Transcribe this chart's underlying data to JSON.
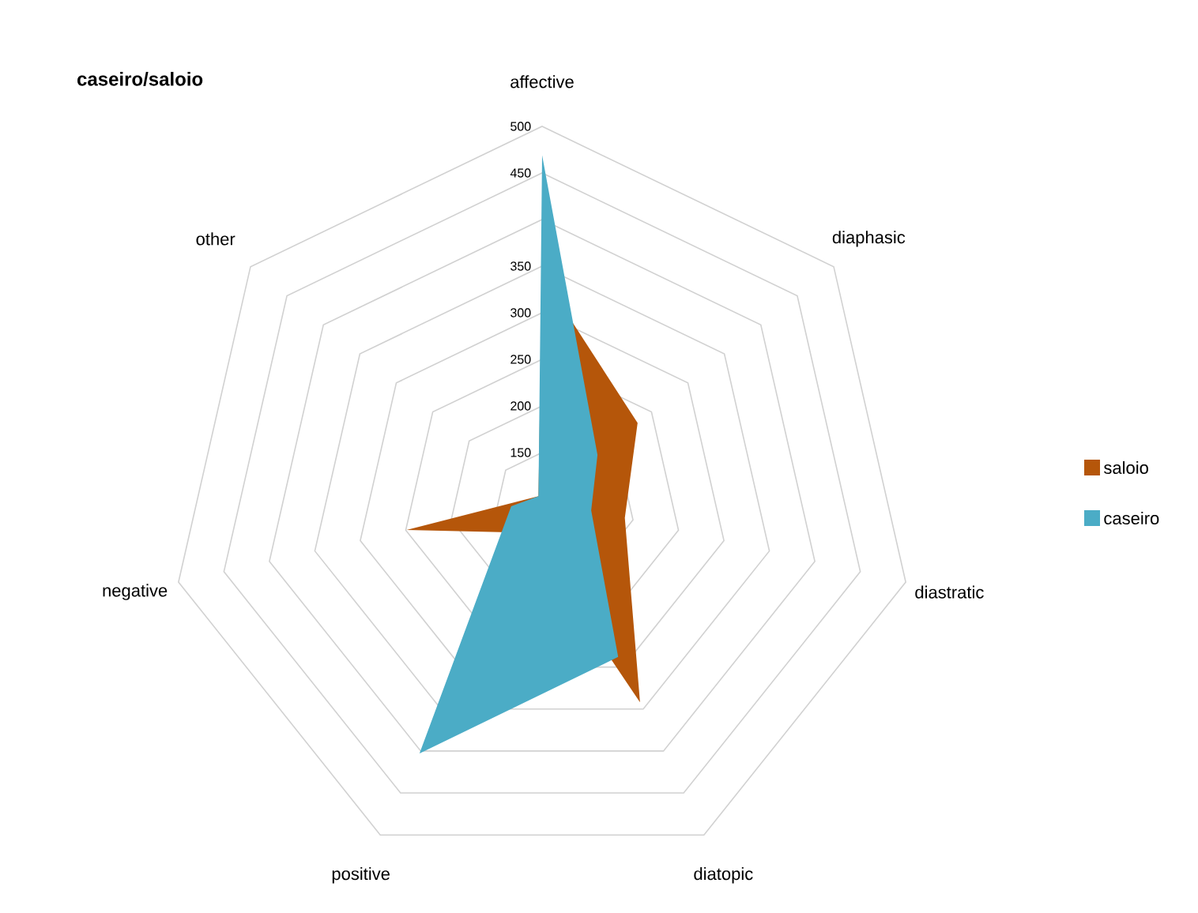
{
  "chart_data": {
    "type": "radar",
    "title": "caseiro/saloio",
    "categories": [
      "affective",
      "diaphasic",
      "diastratic",
      "diatopic",
      "positive",
      "negative",
      "other"
    ],
    "series": [
      {
        "name": "saloio",
        "color": "#b5560a",
        "values": [
          340,
          231,
          191,
          342,
          140,
          249,
          105
        ]
      },
      {
        "name": "caseiro",
        "color": "#4bacc6",
        "values": [
          469,
          176,
          154,
          288,
          403,
          134,
          105
        ]
      }
    ],
    "ylim": [
      100,
      500
    ],
    "yticks": [
      150,
      200,
      250,
      300,
      350,
      450,
      500
    ],
    "grid": true,
    "legend": "right"
  }
}
